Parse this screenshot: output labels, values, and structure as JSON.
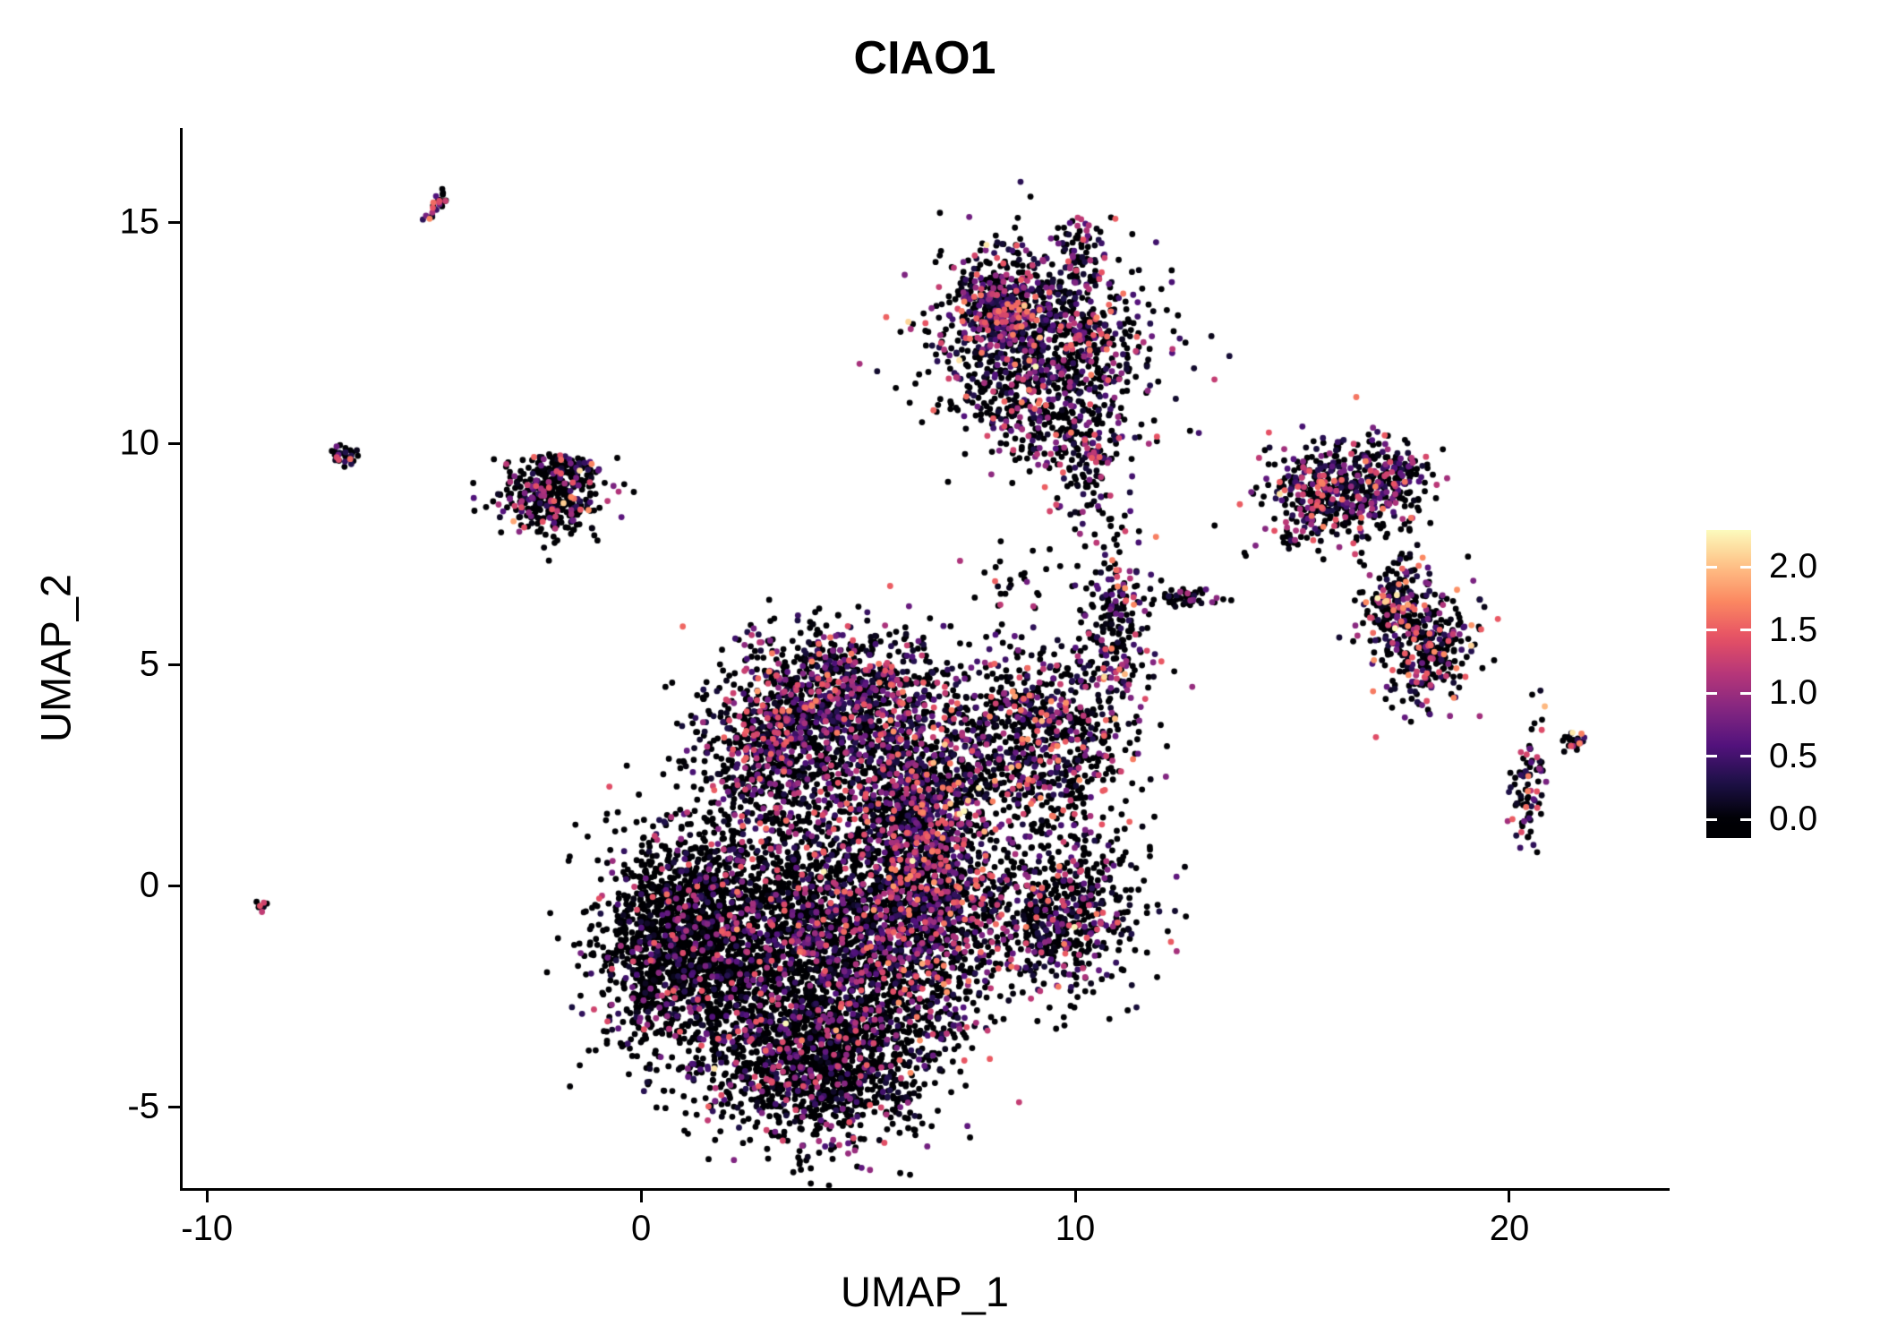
{
  "chart_data": {
    "type": "scatter",
    "title": "CIAO1",
    "xlabel": "UMAP_1",
    "ylabel": "UMAP_2",
    "xlim": [
      -10.56,
      23.63
    ],
    "ylim": [
      -6.84,
      17.13
    ],
    "grid": false,
    "x_ticks": [
      -10,
      0,
      10,
      20
    ],
    "x_tick_labels": [
      "-10",
      "0",
      "10",
      "20"
    ],
    "y_ticks": [
      -5,
      0,
      5,
      10,
      15
    ],
    "y_tick_labels": [
      "-5",
      "0",
      "5",
      "10",
      "15"
    ],
    "legend_position": "right",
    "colorbar": {
      "tick_values": [
        0.0,
        0.5,
        1.0,
        1.5,
        2.0
      ],
      "labels": [
        "0.0",
        "0.5",
        "1.0",
        "1.5",
        "2.0"
      ],
      "vmin": 0.0,
      "vmax": 2.3
    },
    "colormap": {
      "name": "magma",
      "stops": [
        "#000004",
        "#1D1147",
        "#51127C",
        "#822681",
        "#B63679",
        "#E65164",
        "#FB8861",
        "#FEC287",
        "#FCFDBF"
      ]
    },
    "background_color": "#ffffff",
    "axis_color": "#000000",
    "seed": 42,
    "point_radius": 3.4,
    "clusters": [
      {
        "name": "central-left",
        "cx": 1.1,
        "cy": -1.3,
        "sx": 1.05,
        "sy": 1.35,
        "n": 1800,
        "rot": 0,
        "zero": 0.74,
        "vmax": 1.5,
        "hot": 0.004
      },
      {
        "name": "central-bottom",
        "cx": 4.2,
        "cy": -3.9,
        "sx": 1.35,
        "sy": 1.0,
        "n": 1450,
        "rot": 0,
        "zero": 0.72,
        "vmax": 1.5,
        "hot": 0.003
      },
      {
        "name": "central-mid",
        "cx": 4.4,
        "cy": -1.0,
        "sx": 1.5,
        "sy": 1.5,
        "n": 2100,
        "rot": 0,
        "zero": 0.62,
        "vmax": 1.6,
        "hot": 0.005
      },
      {
        "name": "central-right-strip",
        "cx": 6.6,
        "cy": 0.3,
        "sx": 0.7,
        "sy": 1.7,
        "n": 1150,
        "rot": 0,
        "zero": 0.44,
        "vmax": 1.8,
        "hot": 0.013
      },
      {
        "name": "central-upper",
        "cx": 4.7,
        "cy": 4.4,
        "sx": 1.3,
        "sy": 0.75,
        "n": 850,
        "rot": 0,
        "zero": 0.46,
        "vmax": 1.7,
        "hot": 0.012
      },
      {
        "name": "central-upper-left",
        "cx": 3.0,
        "cy": 3.0,
        "sx": 0.95,
        "sy": 0.9,
        "n": 650,
        "rot": 0,
        "zero": 0.56,
        "vmax": 1.6,
        "hot": 0.008
      },
      {
        "name": "central-bridge",
        "cx": 5.9,
        "cy": 2.3,
        "sx": 1.0,
        "sy": 0.9,
        "n": 600,
        "rot": 0,
        "zero": 0.5,
        "vmax": 1.7,
        "hot": 0.01
      },
      {
        "name": "right-mid",
        "cx": 9.2,
        "cy": 3.2,
        "sx": 1.05,
        "sy": 1.15,
        "n": 880,
        "rot": 0,
        "zero": 0.52,
        "vmax": 1.8,
        "hot": 0.02
      },
      {
        "name": "right-mid-arm",
        "cx": 10.95,
        "cy": 5.8,
        "sx": 0.35,
        "sy": 0.9,
        "n": 210,
        "rot": 0,
        "zero": 0.5,
        "vmax": 1.8,
        "hot": 0.03
      },
      {
        "name": "lower-right",
        "cx": 9.6,
        "cy": -0.7,
        "sx": 1.05,
        "sy": 0.85,
        "n": 680,
        "rot": 0,
        "zero": 0.54,
        "vmax": 1.7,
        "hot": 0.01
      },
      {
        "name": "top",
        "cx": 9.2,
        "cy": 12.3,
        "sx": 1.25,
        "sy": 1.05,
        "n": 1100,
        "rot": 0,
        "zero": 0.44,
        "vmax": 1.7,
        "hot": 0.008
      },
      {
        "name": "top-left-sub",
        "cx": 8.4,
        "cy": 13.3,
        "sx": 0.5,
        "sy": 0.5,
        "n": 240,
        "rot": 0,
        "zero": 0.36,
        "vmax": 1.7,
        "hot": 0.01
      },
      {
        "name": "top-bottom-sparse",
        "cx": 9.1,
        "cy": 10.4,
        "sx": 0.8,
        "sy": 0.55,
        "n": 130,
        "rot": 0,
        "zero": 0.62,
        "vmax": 1.5,
        "hot": 0.005
      },
      {
        "name": "top-tail",
        "cx": 10.35,
        "cy": 9.6,
        "sx": 0.38,
        "sy": 0.85,
        "n": 150,
        "rot": 0,
        "zero": 0.5,
        "vmax": 1.6,
        "hot": 0.01
      },
      {
        "name": "top-tuft",
        "cx": 10.0,
        "cy": 14.4,
        "sx": 0.22,
        "sy": 0.33,
        "n": 60,
        "rot": 0,
        "zero": 0.45,
        "vmax": 1.6,
        "hot": 0.02
      },
      {
        "name": "upper-right",
        "cx": 16.0,
        "cy": 8.85,
        "sx": 0.85,
        "sy": 0.6,
        "n": 470,
        "rot": 0,
        "zero": 0.42,
        "vmax": 1.7,
        "hot": 0.012
      },
      {
        "name": "upper-right-east",
        "cx": 17.35,
        "cy": 9.3,
        "sx": 0.45,
        "sy": 0.4,
        "n": 130,
        "rot": 0,
        "zero": 0.46,
        "vmax": 1.7,
        "hot": 0.01
      },
      {
        "name": "right-diag-upper",
        "cx": 17.35,
        "cy": 6.4,
        "sx": 0.35,
        "sy": 0.5,
        "n": 190,
        "rot": -30,
        "zero": 0.45,
        "vmax": 1.8,
        "hot": 0.045
      },
      {
        "name": "right-diag-lower",
        "cx": 18.15,
        "cy": 5.3,
        "sx": 0.5,
        "sy": 0.65,
        "n": 300,
        "rot": -30,
        "zero": 0.46,
        "vmax": 1.8,
        "hot": 0.015
      },
      {
        "name": "far-right-strand",
        "cx": 20.45,
        "cy": 2.3,
        "sx": 0.22,
        "sy": 0.75,
        "n": 85,
        "rot": 0,
        "zero": 0.48,
        "vmax": 1.7,
        "hot": 0.05
      },
      {
        "name": "far-right-dot",
        "cx": 21.5,
        "cy": 3.3,
        "sx": 0.16,
        "sy": 0.15,
        "n": 22,
        "rot": 0,
        "zero": 0.45,
        "vmax": 1.7,
        "hot": 0.1
      },
      {
        "name": "mid-string",
        "cx": 12.6,
        "cy": 6.5,
        "sx": 0.5,
        "sy": 0.1,
        "n": 50,
        "rot": 0,
        "zero": 0.78,
        "vmax": 1.3,
        "hot": 0.01
      },
      {
        "name": "bridge-sparse",
        "cx": 8.3,
        "cy": 7.0,
        "sx": 0.5,
        "sy": 0.6,
        "n": 25,
        "rot": 0,
        "zero": 0.6,
        "vmax": 1.5,
        "hot": 0.02
      },
      {
        "name": "left-cluster",
        "cx": -2.1,
        "cy": 8.8,
        "sx": 0.6,
        "sy": 0.45,
        "n": 340,
        "rot": 0,
        "zero": 0.62,
        "vmax": 1.6,
        "hot": 0.05
      },
      {
        "name": "left-cluster-top",
        "cx": -1.8,
        "cy": 9.4,
        "sx": 0.3,
        "sy": 0.2,
        "n": 80,
        "rot": 0,
        "zero": 0.55,
        "vmax": 1.6,
        "hot": 0.03
      },
      {
        "name": "tiny-left",
        "cx": -6.85,
        "cy": 9.7,
        "sx": 0.13,
        "sy": 0.15,
        "n": 28,
        "rot": 0,
        "zero": 0.5,
        "vmax": 1.6,
        "hot": 0.05
      },
      {
        "name": "tiny-top-left",
        "cx": -4.75,
        "cy": 15.4,
        "sx": 0.1,
        "sy": 0.2,
        "n": 26,
        "rot": -35,
        "zero": 0.45,
        "vmax": 1.7,
        "hot": 0.1
      },
      {
        "name": "tiny-far-left",
        "cx": -8.7,
        "cy": -0.45,
        "sx": 0.09,
        "sy": 0.09,
        "n": 9,
        "rot": 0,
        "zero": 0.5,
        "vmax": 1.5,
        "hot": 0.05
      },
      {
        "name": "tiny-mid-bridge",
        "cx": 15.0,
        "cy": 7.85,
        "sx": 0.12,
        "sy": 0.1,
        "n": 10,
        "rot": 0,
        "zero": 0.7,
        "vmax": 1.2,
        "hot": 0
      }
    ]
  }
}
